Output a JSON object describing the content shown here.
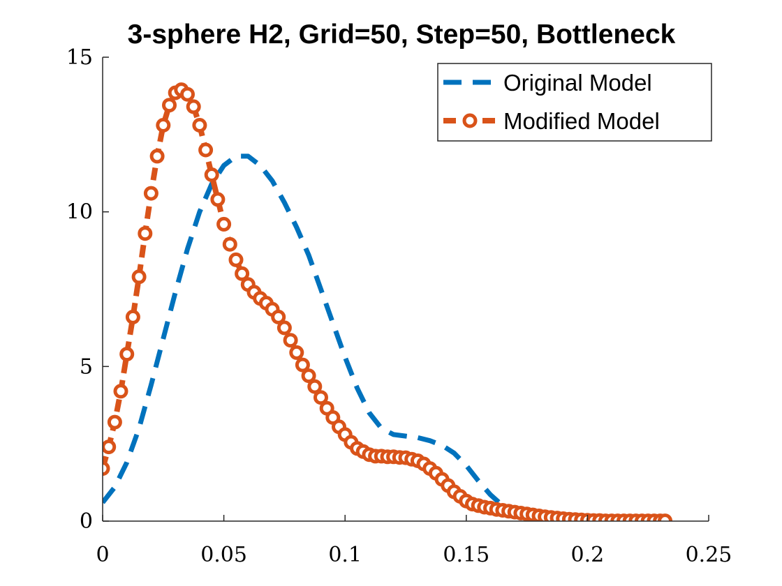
{
  "chart_data": {
    "type": "line",
    "title": "3-sphere H2, Grid=50, Step=50, Bottleneck",
    "xlabel": "",
    "ylabel": "",
    "xlim": [
      0,
      0.25
    ],
    "ylim": [
      0,
      15
    ],
    "xticks": [
      "0",
      "0.05",
      "0.1",
      "0.15",
      "0.2",
      "0.25"
    ],
    "yticks": [
      "0",
      "5",
      "10",
      "15"
    ],
    "grid": false,
    "legend_position": "top-right",
    "series": [
      {
        "name": "Original Model",
        "color": "#0072BD",
        "style": "dashed",
        "marker": "none",
        "x": [
          0.0,
          0.005,
          0.01,
          0.015,
          0.02,
          0.025,
          0.03,
          0.035,
          0.04,
          0.045,
          0.05,
          0.055,
          0.06,
          0.065,
          0.07,
          0.075,
          0.08,
          0.085,
          0.09,
          0.095,
          0.1,
          0.105,
          0.11,
          0.115,
          0.12,
          0.125,
          0.13,
          0.135,
          0.14,
          0.145,
          0.15,
          0.155,
          0.16,
          0.165,
          0.17,
          0.175,
          0.18
        ],
        "y": [
          0.6,
          1.1,
          1.9,
          3.0,
          4.4,
          5.9,
          7.4,
          8.8,
          10.0,
          10.9,
          11.5,
          11.8,
          11.8,
          11.5,
          11.0,
          10.3,
          9.5,
          8.6,
          7.5,
          6.4,
          5.3,
          4.3,
          3.5,
          3.0,
          2.8,
          2.75,
          2.7,
          2.6,
          2.45,
          2.2,
          1.8,
          1.3,
          0.85,
          0.5,
          0.3,
          0.2,
          0.2
        ]
      },
      {
        "name": "Modified Model",
        "color": "#D95319",
        "style": "dashed",
        "marker": "circle",
        "x": [
          0.0,
          0.0025,
          0.005,
          0.0075,
          0.01,
          0.0125,
          0.015,
          0.0175,
          0.02,
          0.0225,
          0.025,
          0.0275,
          0.03,
          0.0325,
          0.035,
          0.0375,
          0.04,
          0.0425,
          0.045,
          0.0475,
          0.05,
          0.0525,
          0.055,
          0.0575,
          0.06,
          0.0625,
          0.065,
          0.0675,
          0.07,
          0.0725,
          0.075,
          0.0775,
          0.08,
          0.0825,
          0.085,
          0.0875,
          0.09,
          0.0925,
          0.095,
          0.0975,
          0.1,
          0.1025,
          0.105,
          0.1075,
          0.11,
          0.1125,
          0.115,
          0.1175,
          0.12,
          0.1225,
          0.125,
          0.1275,
          0.13,
          0.1325,
          0.135,
          0.1375,
          0.14,
          0.1425,
          0.145,
          0.1475,
          0.15,
          0.1525,
          0.155,
          0.1575,
          0.16,
          0.1625,
          0.165,
          0.1675,
          0.17,
          0.1725,
          0.175,
          0.1775,
          0.18,
          0.1825,
          0.185,
          0.1875,
          0.19,
          0.1925,
          0.195,
          0.1975,
          0.2,
          0.2025,
          0.205,
          0.2075,
          0.21,
          0.2125,
          0.215,
          0.2175,
          0.22,
          0.2225,
          0.225,
          0.2275,
          0.23,
          0.232
        ],
        "y": [
          1.7,
          2.4,
          3.2,
          4.2,
          5.4,
          6.6,
          7.9,
          9.3,
          10.6,
          11.8,
          12.8,
          13.45,
          13.85,
          13.95,
          13.8,
          13.4,
          12.8,
          12.0,
          11.2,
          10.4,
          9.6,
          8.95,
          8.45,
          8.0,
          7.65,
          7.4,
          7.2,
          7.05,
          6.85,
          6.6,
          6.25,
          5.85,
          5.45,
          5.05,
          4.7,
          4.35,
          4.0,
          3.65,
          3.35,
          3.05,
          2.8,
          2.55,
          2.35,
          2.25,
          2.15,
          2.1,
          2.1,
          2.08,
          2.08,
          2.06,
          2.05,
          2.0,
          1.95,
          1.85,
          1.7,
          1.55,
          1.35,
          1.15,
          0.95,
          0.8,
          0.65,
          0.55,
          0.5,
          0.45,
          0.42,
          0.38,
          0.35,
          0.32,
          0.29,
          0.26,
          0.23,
          0.2,
          0.17,
          0.14,
          0.12,
          0.1,
          0.08,
          0.06,
          0.05,
          0.04,
          0.03,
          0.02,
          0.02,
          0.01,
          0.01,
          0.01,
          0.01,
          0.01,
          0.01,
          0.01,
          0.01,
          0.01,
          0.01,
          0.01
        ]
      }
    ]
  }
}
